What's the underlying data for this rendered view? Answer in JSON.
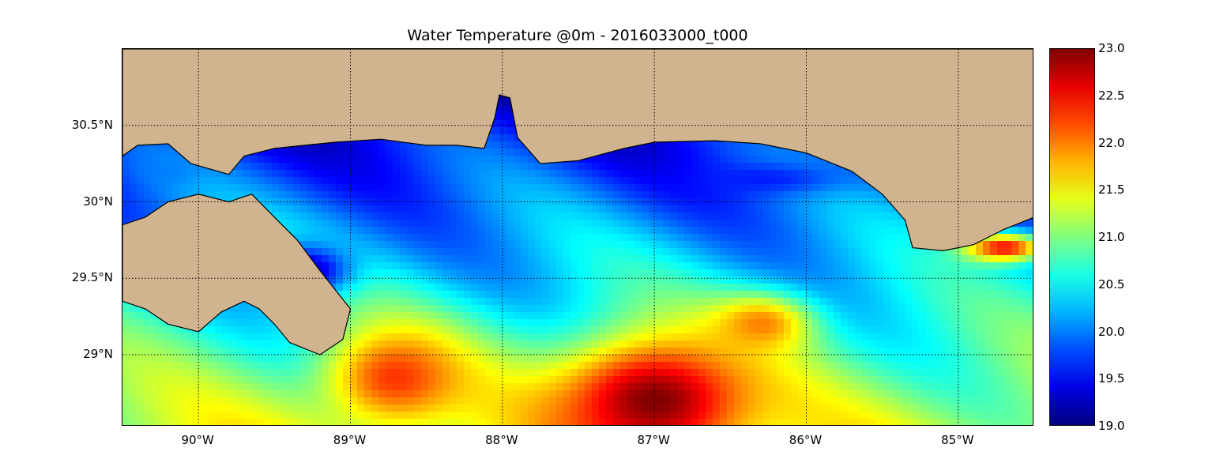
{
  "map": {
    "title": "Water Temperature @0m - 2016033000_t000",
    "extent": {
      "lon_min": -90.5,
      "lon_max": -84.5,
      "lat_min": 28.53,
      "lat_max": 31.0
    },
    "grid": "dotted",
    "land_color": "#d0b48f",
    "coastline_color": "#000000",
    "x_ticks": [
      {
        "lon": -90,
        "label": "90°W"
      },
      {
        "lon": -89,
        "label": "89°W"
      },
      {
        "lon": -88,
        "label": "88°W"
      },
      {
        "lon": -87,
        "label": "87°W"
      },
      {
        "lon": -86,
        "label": "86°W"
      },
      {
        "lon": -85,
        "label": "85°W"
      }
    ],
    "y_ticks": [
      {
        "lat": 30.5,
        "label": "30.5°N"
      },
      {
        "lat": 30.0,
        "label": "30°N"
      },
      {
        "lat": 29.5,
        "label": "29.5°N"
      },
      {
        "lat": 29.0,
        "label": "29°N"
      }
    ],
    "warm_features": [
      {
        "name": "loop-current-core",
        "lon": -87.0,
        "lat": 28.7,
        "rx": 0.7,
        "ry": 0.45,
        "temp": 23.0
      },
      {
        "name": "warm-filament-west",
        "lon": -88.7,
        "lat": 28.85,
        "rx": 0.5,
        "ry": 0.35,
        "temp": 22.3
      },
      {
        "name": "warm-eddy-east",
        "lon": -86.3,
        "lat": 29.2,
        "rx": 0.35,
        "ry": 0.2,
        "temp": 22.0
      },
      {
        "name": "northeast-shelf",
        "lon": -84.7,
        "lat": 29.7,
        "rx": 0.3,
        "ry": 0.1,
        "temp": 22.5
      }
    ],
    "cold_features": [
      {
        "name": "mississippi-sound-cold",
        "lon": -89.3,
        "lat": 29.55,
        "rx": 0.35,
        "ry": 0.2,
        "temp": 19.2
      },
      {
        "name": "florida-shelf-cold",
        "lon": -86.3,
        "lat": 30.15,
        "rx": 0.6,
        "ry": 0.12,
        "temp": 19.6
      },
      {
        "name": "lake-pontchartrain",
        "lon": -90.2,
        "lat": 30.2,
        "rx": 0.2,
        "ry": 0.1,
        "temp": 20.0
      }
    ]
  },
  "colorbar": {
    "min": 19.0,
    "max": 23.0,
    "colormap": "jet",
    "ticks": [
      "23.0",
      "22.5",
      "22.0",
      "21.5",
      "21.0",
      "20.5",
      "20.0",
      "19.5",
      "19.0"
    ]
  }
}
